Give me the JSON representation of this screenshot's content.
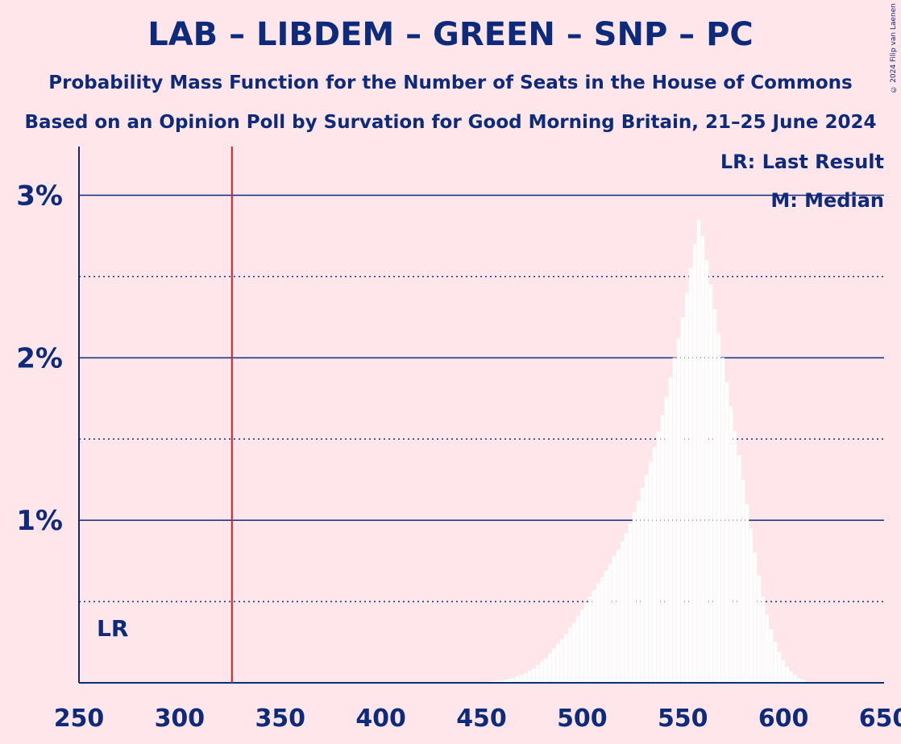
{
  "header": {
    "title": "LAB – LIBDEM – GREEN – SNP – PC",
    "subtitle1": "Probability Mass Function for the Number of Seats in the House of Commons",
    "subtitle2": "Based on an Opinion Poll by Survation for Good Morning Britain, 21–25 June 2024",
    "copyright": "© 2024 Filip van Laenen"
  },
  "legend": {
    "last_result": "LR: Last Result",
    "median": "M: Median"
  },
  "chart_data": {
    "type": "bar",
    "title": "LAB – LIBDEM – GREEN – SNP – PC",
    "xlabel": "",
    "ylabel": "",
    "xlim": [
      250,
      650
    ],
    "ylim": [
      0,
      3.3
    ],
    "x_ticks": [
      250,
      300,
      350,
      400,
      450,
      500,
      550,
      600,
      650
    ],
    "y_ticks": [
      {
        "value": 1,
        "label": "1%"
      },
      {
        "value": 2,
        "label": "2%"
      },
      {
        "value": 3,
        "label": "3%"
      }
    ],
    "minor_gridlines": [
      0.5,
      1.5,
      2.5
    ],
    "last_result": {
      "x": 326,
      "label": "LR"
    },
    "median": {
      "x": 559,
      "label": "M"
    },
    "colors": {
      "background": "#FFE6EA",
      "axis": "#0E2A7A",
      "bar": "#FFFFFF",
      "last_result_line": "#D0202E"
    },
    "seats": [
      450,
      452,
      454,
      456,
      458,
      460,
      462,
      464,
      466,
      468,
      470,
      472,
      474,
      476,
      478,
      480,
      482,
      484,
      486,
      488,
      490,
      492,
      494,
      496,
      498,
      500,
      502,
      504,
      506,
      508,
      510,
      512,
      514,
      516,
      518,
      520,
      522,
      524,
      526,
      528,
      530,
      532,
      534,
      536,
      538,
      540,
      542,
      544,
      546,
      548,
      550,
      552,
      554,
      556,
      558,
      560,
      562,
      564,
      566,
      568,
      570,
      572,
      574,
      576,
      578,
      580,
      582,
      584,
      586,
      588,
      590,
      592,
      594,
      596,
      598,
      600,
      602,
      604,
      606,
      608,
      610
    ],
    "values": [
      0.005,
      0.006,
      0.008,
      0.01,
      0.012,
      0.015,
      0.02,
      0.025,
      0.03,
      0.04,
      0.05,
      0.06,
      0.075,
      0.09,
      0.11,
      0.13,
      0.15,
      0.18,
      0.21,
      0.24,
      0.27,
      0.3,
      0.34,
      0.37,
      0.41,
      0.45,
      0.49,
      0.53,
      0.57,
      0.61,
      0.65,
      0.69,
      0.73,
      0.78,
      0.82,
      0.87,
      0.92,
      0.98,
      1.05,
      1.12,
      1.2,
      1.28,
      1.36,
      1.45,
      1.55,
      1.65,
      1.76,
      1.88,
      2.0,
      2.12,
      2.25,
      2.4,
      2.55,
      2.7,
      2.85,
      2.75,
      2.6,
      2.45,
      2.3,
      2.15,
      2.0,
      1.85,
      1.7,
      1.55,
      1.4,
      1.25,
      1.1,
      0.95,
      0.8,
      0.66,
      0.53,
      0.42,
      0.33,
      0.25,
      0.19,
      0.14,
      0.1,
      0.07,
      0.05,
      0.03,
      0.02
    ]
  }
}
